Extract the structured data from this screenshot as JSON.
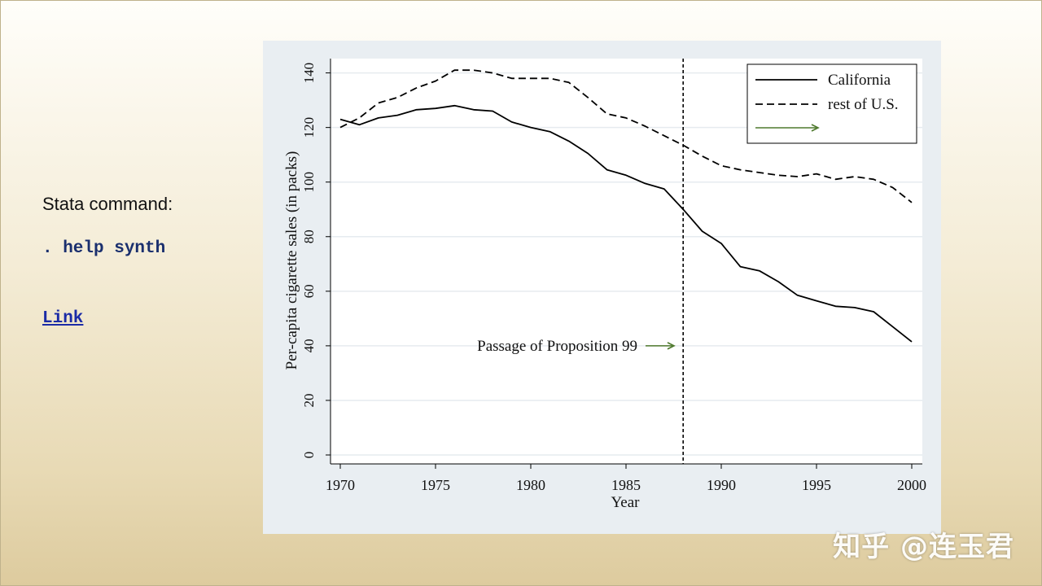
{
  "sidebar": {
    "label": "Stata command:",
    "command": ". help synth",
    "link": "Link"
  },
  "watermark": "知乎 @连玉君",
  "colors": {
    "series_solid": "#000000",
    "series_dashed": "#000000",
    "annotation_arrow": "#4f7a2e",
    "panel_bg": "#e9eef2",
    "plot_bg": "#ffffff",
    "grid": "#e6ebef"
  },
  "chart_data": {
    "type": "line",
    "xlabel": "Year",
    "ylabel": "Per-capita cigarette sales (in packs)",
    "xlim": [
      1970,
      2000
    ],
    "ylim": [
      0,
      145
    ],
    "xticks": [
      1970,
      1975,
      1980,
      1985,
      1990,
      1995,
      2000
    ],
    "yticks": [
      0,
      20,
      40,
      60,
      80,
      100,
      120,
      140
    ],
    "grid": true,
    "legend_position": "top-right",
    "legend": [
      "California",
      "rest of U.S.",
      ""
    ],
    "x": [
      1970,
      1971,
      1972,
      1973,
      1974,
      1975,
      1976,
      1977,
      1978,
      1979,
      1980,
      1981,
      1982,
      1983,
      1984,
      1985,
      1986,
      1987,
      1988,
      1989,
      1990,
      1991,
      1992,
      1993,
      1994,
      1995,
      1996,
      1997,
      1998,
      1999,
      2000
    ],
    "series": [
      {
        "name": "California",
        "style": "solid",
        "values": [
          123,
          121,
          123.5,
          124.5,
          126.5,
          127,
          128,
          126.5,
          126,
          122,
          120,
          118.5,
          115,
          110.5,
          104.5,
          102.5,
          99.5,
          97.5,
          90,
          82,
          77.5,
          69,
          67.5,
          63.5,
          58.5,
          56.5,
          54.5,
          54,
          52.5,
          47,
          41.5
        ]
      },
      {
        "name": "rest of U.S.",
        "style": "dashed",
        "values": [
          120,
          123.5,
          129,
          131,
          134.5,
          137,
          141,
          141,
          140,
          138,
          138,
          138,
          136.5,
          131,
          125,
          123.5,
          120.5,
          117,
          113.5,
          109.5,
          106,
          104.5,
          103.5,
          102.5,
          102,
          103,
          101,
          102,
          101,
          98,
          92.5
        ]
      }
    ],
    "vline": {
      "x": 1988
    },
    "annotation": {
      "text": "Passage of Proposition 99",
      "y": 40
    }
  }
}
